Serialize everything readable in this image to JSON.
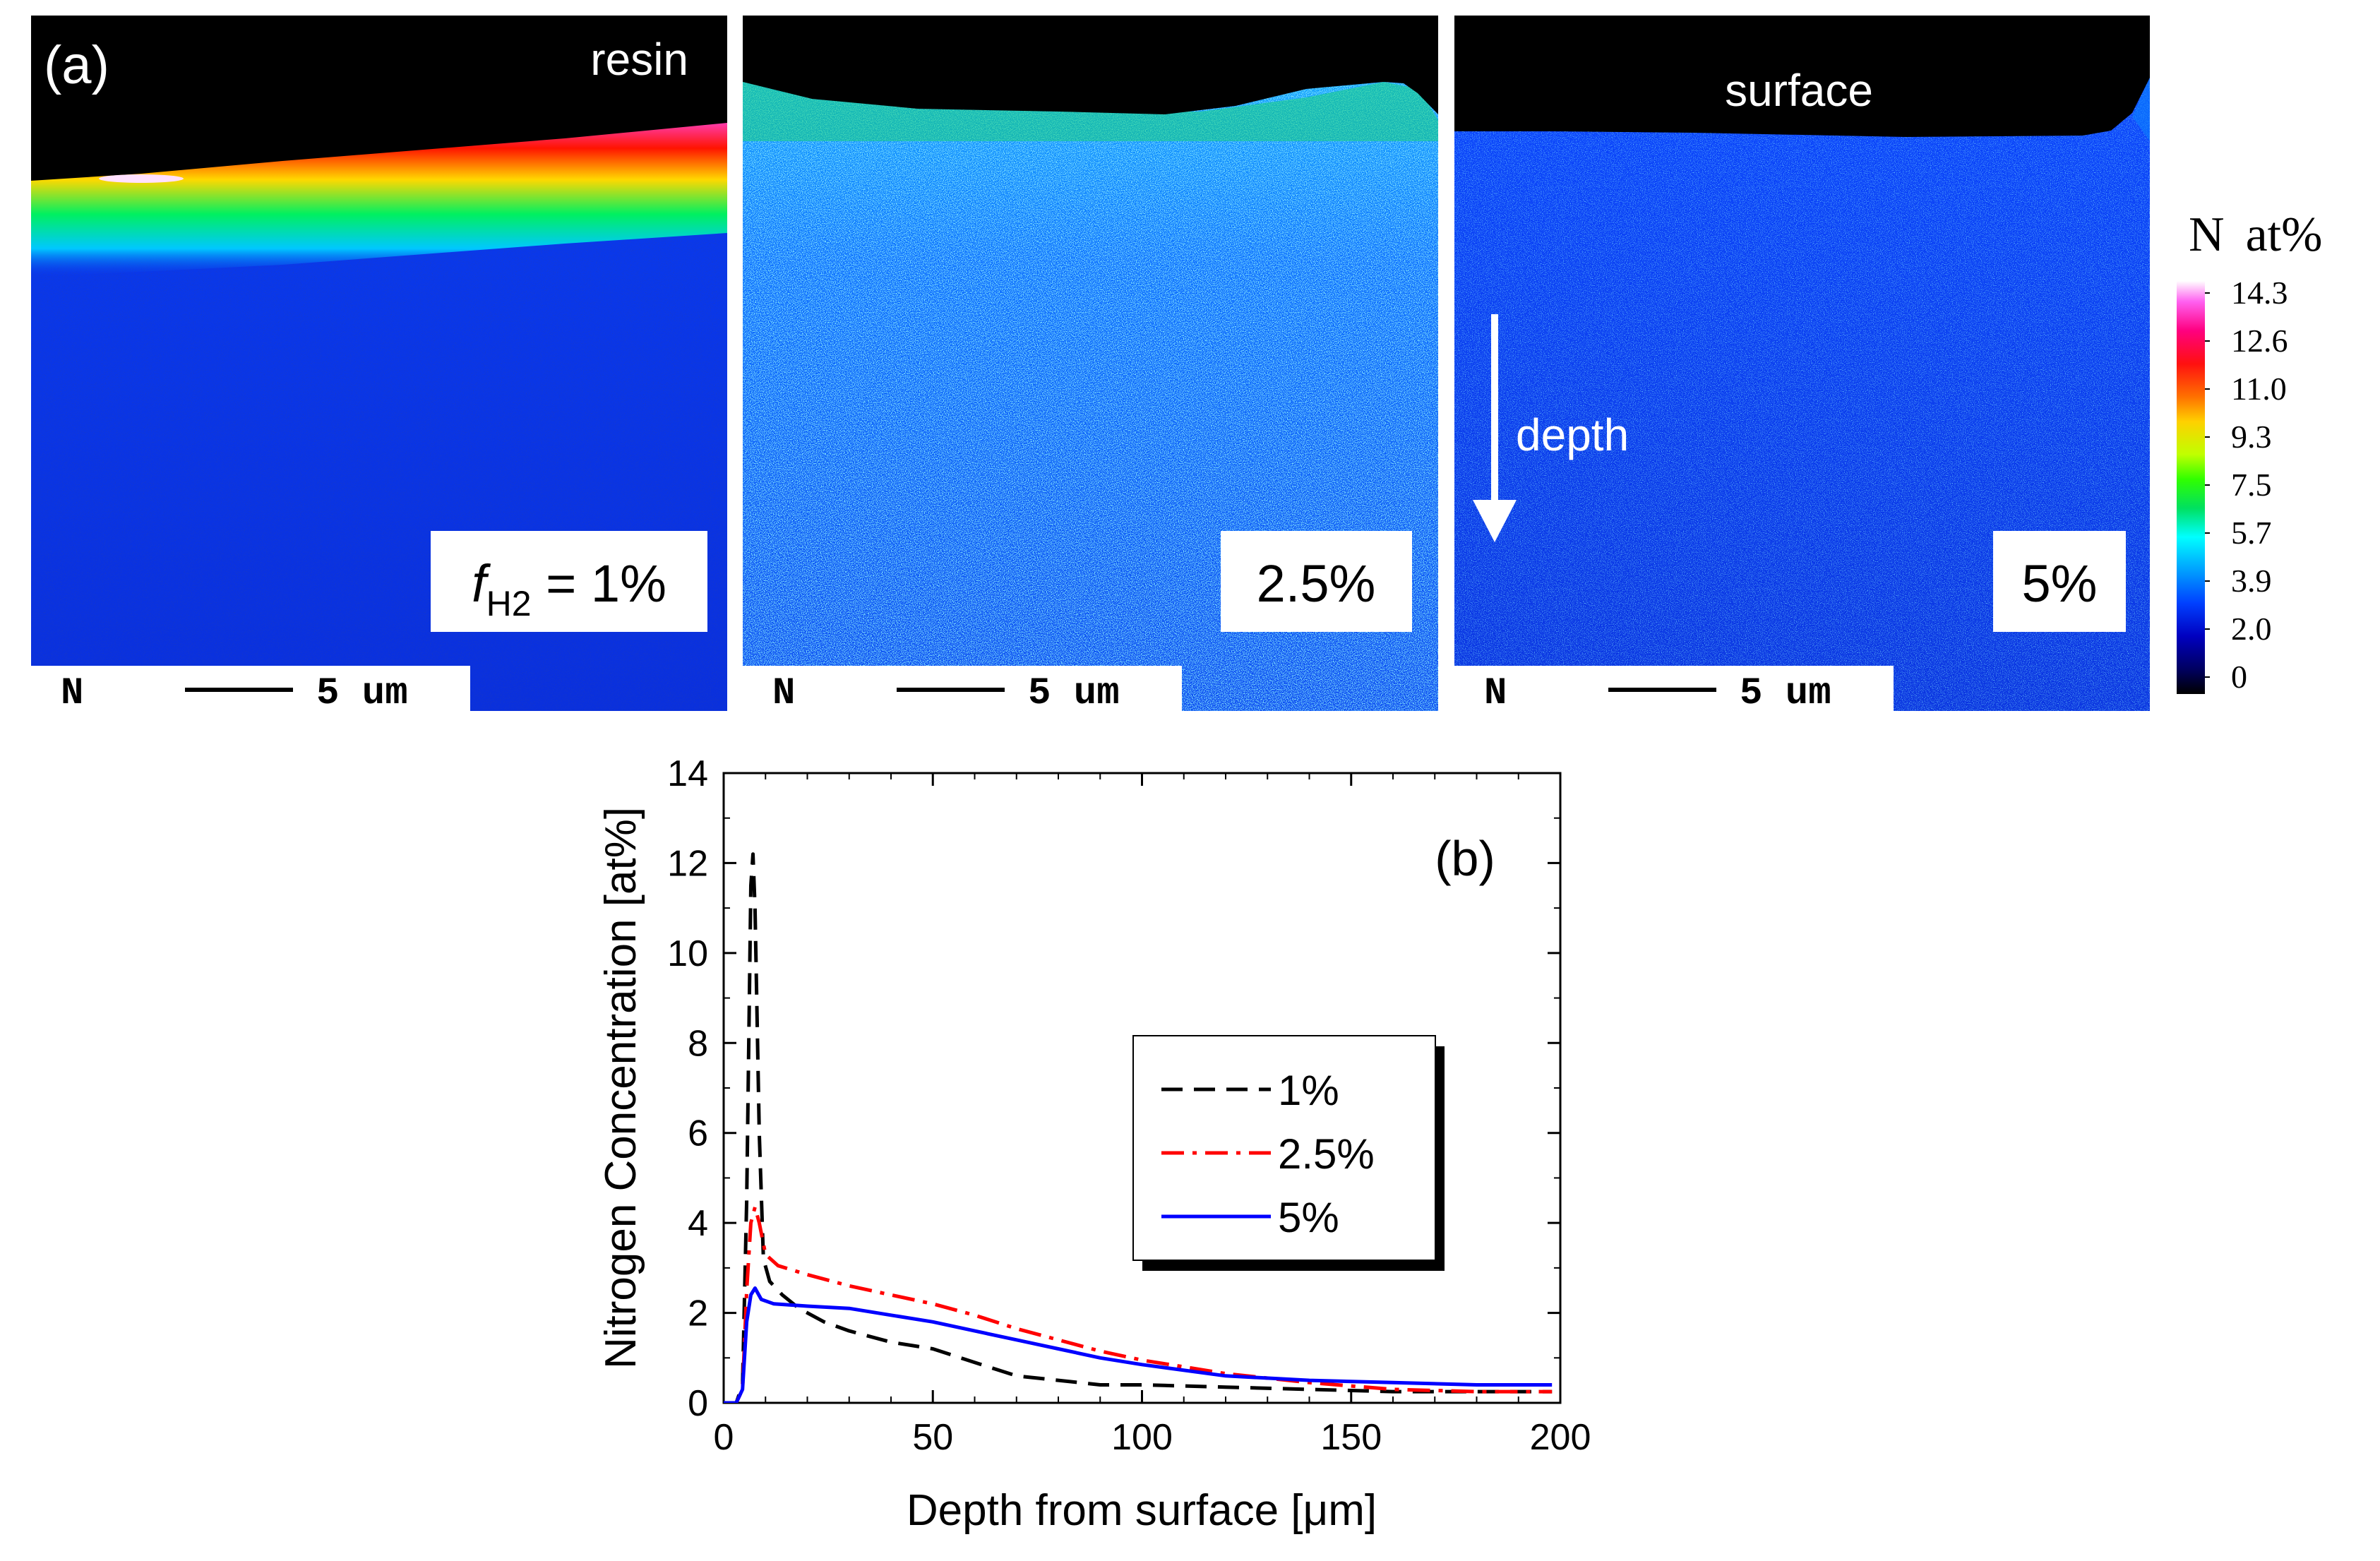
{
  "figure": {
    "panel_a_label": "(a)",
    "panel_b_label": "(b)",
    "resin_label": "resin",
    "surface_label": "surface",
    "depth_label": "depth",
    "f_symbol": "f",
    "f_subscript": "H2",
    "f_value": " = 1%",
    "sample_labels": [
      "2.5%",
      "5%"
    ],
    "scale_element": "N",
    "scale_text": "5 um"
  },
  "colorbar": {
    "title_element": "N",
    "title_unit": "at%",
    "ticks": [
      "14.3",
      "12.6",
      "11.0",
      "9.3",
      "7.5",
      "5.7",
      "3.9",
      "2.0",
      "0"
    ],
    "colors": [
      "#ffffff",
      "#ff60f0",
      "#ff0080",
      "#ff1010",
      "#ff7000",
      "#ffd000",
      "#c0ff00",
      "#30ff00",
      "#00e060",
      "#00ffff",
      "#00a0ff",
      "#0040ff",
      "#0000c0",
      "#000060",
      "#000000"
    ]
  },
  "maps": {
    "colors": {
      "black": "#000000",
      "red": "#ff1400",
      "magenta": "#ff40c0",
      "yellow": "#ffd800",
      "green": "#00f060",
      "cyan": "#00c8ff",
      "blue_light": "#0a50ff",
      "blue_mid": "#0a3cf0",
      "blue_deep": "#0a30dc"
    }
  },
  "chart_data": {
    "type": "line",
    "title": "(b)",
    "xlabel": "Depth from surface [μm]",
    "ylabel": "Nitrogen Concentration [at%]",
    "xlim": [
      0,
      200
    ],
    "ylim": [
      0,
      14
    ],
    "xticks": [
      0,
      50,
      100,
      150,
      200
    ],
    "yticks": [
      0,
      2,
      4,
      6,
      8,
      10,
      12,
      14
    ],
    "legend": [
      "1%",
      "2.5%",
      "5%"
    ],
    "series": [
      {
        "name": "1%",
        "color": "#000000",
        "style": "dashed",
        "x": [
          0,
          3,
          4.5,
          5.5,
          6.5,
          7,
          7.5,
          8.5,
          9.5,
          11,
          14,
          18,
          24,
          30,
          40,
          50,
          60,
          70,
          80,
          90,
          100,
          120,
          140,
          160,
          180,
          198
        ],
        "y": [
          0,
          0,
          0.4,
          4.5,
          11.5,
          12.2,
          11.0,
          6.0,
          3.2,
          2.7,
          2.4,
          2.1,
          1.8,
          1.6,
          1.35,
          1.2,
          0.9,
          0.6,
          0.5,
          0.4,
          0.4,
          0.35,
          0.3,
          0.25,
          0.25,
          0.25
        ]
      },
      {
        "name": "2.5%",
        "color": "#ff0000",
        "style": "dashdot",
        "x": [
          0,
          3,
          4.5,
          5.5,
          6.5,
          7.5,
          8.5,
          10,
          13,
          20,
          30,
          40,
          50,
          60,
          70,
          80,
          90,
          100,
          110,
          120,
          140,
          160,
          180,
          198
        ],
        "y": [
          0,
          0,
          0.3,
          2.5,
          4.0,
          4.35,
          4.0,
          3.3,
          3.05,
          2.85,
          2.6,
          2.4,
          2.2,
          1.95,
          1.65,
          1.4,
          1.15,
          0.95,
          0.8,
          0.65,
          0.45,
          0.3,
          0.25,
          0.25
        ]
      },
      {
        "name": "5%",
        "color": "#0000ff",
        "style": "solid",
        "x": [
          0,
          3,
          4.5,
          5.5,
          6.5,
          7.5,
          9,
          12,
          20,
          30,
          40,
          50,
          60,
          70,
          80,
          90,
          100,
          120,
          140,
          160,
          180,
          198
        ],
        "y": [
          0,
          0,
          0.3,
          1.8,
          2.4,
          2.55,
          2.3,
          2.2,
          2.15,
          2.1,
          1.95,
          1.8,
          1.6,
          1.4,
          1.2,
          1.0,
          0.85,
          0.6,
          0.5,
          0.45,
          0.4,
          0.4
        ]
      }
    ]
  }
}
